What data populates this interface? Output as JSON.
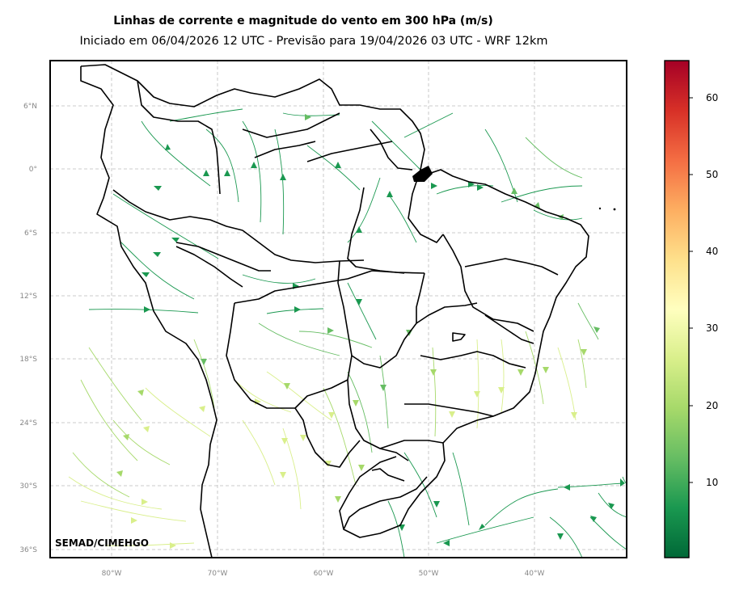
{
  "title": "Linhas de corrente e magnitude do vento em 300 hPa (m/s)",
  "subtitle": "Iniciado em 06/04/2026 12 UTC - Previsão para 19/04/2026 03 UTC - WRF 12km",
  "credit": "SEMAD/CIMEHGO",
  "lat_labels": [
    "6°N",
    "0°",
    "6°S",
    "12°S",
    "18°S",
    "24°S",
    "30°S",
    "36°S"
  ],
  "lon_labels": [
    "80°W",
    "70°W",
    "60°W",
    "50°W",
    "40°W"
  ],
  "colorbar": {
    "ticks": [
      "10",
      "20",
      "30",
      "40",
      "50",
      "60"
    ],
    "colormap": "RdYlGn_r",
    "min": 0,
    "max": 65,
    "colors": [
      "#006837",
      "#1a9850",
      "#66bd63",
      "#a6d96a",
      "#d9ef8b",
      "#ffffbf",
      "#fee08b",
      "#fdae61",
      "#f46d43",
      "#d73027",
      "#a50026"
    ]
  },
  "map": {
    "grid": true,
    "stream_colors": [
      "#1a9850",
      "#66bd63",
      "#a6d96a",
      "#d9ef8b"
    ]
  }
}
